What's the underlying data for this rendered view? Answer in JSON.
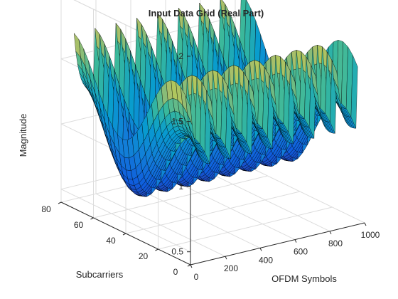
{
  "chart_data": {
    "type": "surface",
    "title": "Input Data Grid (Real Part)",
    "xlabel": "OFDM Symbols",
    "ylabel": "Subcarriers",
    "zlabel": "Magnitude",
    "xlim": [
      0,
      1000
    ],
    "ylim": [
      0,
      80
    ],
    "zlim": [
      0.4,
      2
    ],
    "xticks": [
      0,
      200,
      400,
      600,
      800,
      1000
    ],
    "yticks": [
      0,
      20,
      40,
      60,
      80
    ],
    "zticks": [
      0.5,
      1,
      1.5,
      2
    ],
    "grid": true,
    "colormap": "parula",
    "edge_color": "#000000",
    "surface_model": {
      "x_range": [
        0,
        960
      ],
      "y_range": [
        0,
        72
      ],
      "subcarrier_profile_base": 0.95,
      "subcarrier_profile_amplitude": 0.32,
      "subcarrier_profile_period": 64,
      "subcarrier_profile_phase": 0.6,
      "symbol_peak_period": 120,
      "symbol_peak_count": 8,
      "symbol_peak_height": 0.48
    }
  }
}
